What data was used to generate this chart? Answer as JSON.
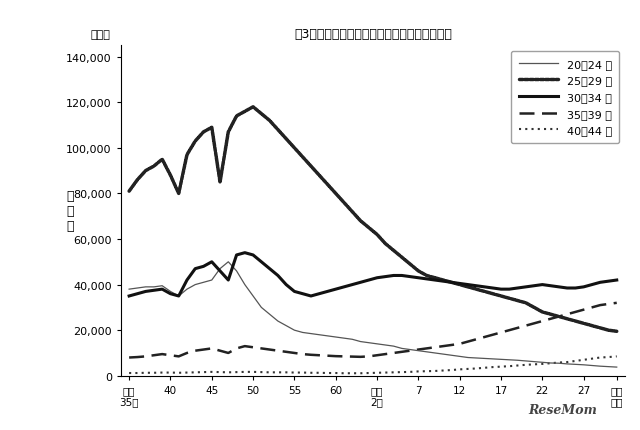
{
  "title": "図3　母の年齢別出生数の年次推移（東京都）",
  "ylabel_chars": [
    "出",
    "生",
    "数"
  ],
  "unit_label": "（人）",
  "background_color": "#ffffff",
  "ylim": [
    0,
    145000
  ],
  "yticks": [
    0,
    20000,
    40000,
    60000,
    80000,
    100000,
    120000,
    140000
  ],
  "x_tick_labels": [
    "昭和\n35年",
    "40",
    "45",
    "50",
    "55",
    "60",
    "平成\n2年",
    "7",
    "12",
    "17",
    "22",
    "27",
    "令和\n元年"
  ],
  "x_tick_positions": [
    1960,
    1965,
    1970,
    1975,
    1980,
    1985,
    1990,
    1995,
    2000,
    2005,
    2010,
    2015,
    2019
  ],
  "legend_labels": [
    "20～24 歳",
    "25～29 歳",
    "30～34 歳",
    "35～39 歳",
    "40～44 歳"
  ],
  "series": {
    "age_20_24": {
      "color": "#555555",
      "linewidth": 0.9,
      "linestyle": "-",
      "data": {
        "years": [
          1960,
          1961,
          1962,
          1963,
          1964,
          1965,
          1966,
          1967,
          1968,
          1969,
          1970,
          1971,
          1972,
          1973,
          1974,
          1975,
          1976,
          1977,
          1978,
          1979,
          1980,
          1981,
          1982,
          1983,
          1984,
          1985,
          1986,
          1987,
          1988,
          1989,
          1990,
          1991,
          1992,
          1993,
          1994,
          1995,
          1996,
          1997,
          1998,
          1999,
          2000,
          2001,
          2002,
          2003,
          2004,
          2005,
          2006,
          2007,
          2008,
          2009,
          2010,
          2011,
          2012,
          2013,
          2014,
          2015,
          2016,
          2017,
          2018,
          2019
        ],
        "values": [
          38000,
          38500,
          39000,
          39000,
          39500,
          37000,
          35000,
          38000,
          40000,
          41000,
          42000,
          47000,
          50000,
          46000,
          40000,
          35000,
          30000,
          27000,
          24000,
          22000,
          20000,
          19000,
          18500,
          18000,
          17500,
          17000,
          16500,
          16000,
          15000,
          14500,
          14000,
          13500,
          13000,
          12000,
          11500,
          11000,
          10500,
          10000,
          9500,
          9000,
          8500,
          8000,
          7800,
          7600,
          7400,
          7200,
          7000,
          6800,
          6500,
          6200,
          5900,
          5600,
          5500,
          5200,
          5000,
          4800,
          4500,
          4200,
          4000,
          3800
        ]
      }
    },
    "age_25_29": {
      "color": "#222222",
      "linewidth": 2.5,
      "linestyle": "dense_dot",
      "data": {
        "years": [
          1960,
          1961,
          1962,
          1963,
          1964,
          1965,
          1966,
          1967,
          1968,
          1969,
          1970,
          1971,
          1972,
          1973,
          1974,
          1975,
          1976,
          1977,
          1978,
          1979,
          1980,
          1981,
          1982,
          1983,
          1984,
          1985,
          1986,
          1987,
          1988,
          1989,
          1990,
          1991,
          1992,
          1993,
          1994,
          1995,
          1996,
          1997,
          1998,
          1999,
          2000,
          2001,
          2002,
          2003,
          2004,
          2005,
          2006,
          2007,
          2008,
          2009,
          2010,
          2011,
          2012,
          2013,
          2014,
          2015,
          2016,
          2017,
          2018,
          2019
        ],
        "values": [
          81000,
          86000,
          90000,
          92000,
          95000,
          88000,
          80000,
          97000,
          103000,
          107000,
          109000,
          85000,
          107000,
          114000,
          116000,
          118000,
          115000,
          112000,
          108000,
          104000,
          100000,
          96000,
          92000,
          88000,
          84000,
          80000,
          76000,
          72000,
          68000,
          65000,
          62000,
          58000,
          55000,
          52000,
          49000,
          46000,
          44000,
          43000,
          42000,
          41000,
          40000,
          39000,
          38000,
          37000,
          36000,
          35000,
          34000,
          33000,
          32000,
          30000,
          28000,
          27000,
          26000,
          25000,
          24000,
          23000,
          22000,
          21000,
          20000,
          19500
        ]
      }
    },
    "age_30_34": {
      "color": "#111111",
      "linewidth": 2.2,
      "linestyle": "-",
      "data": {
        "years": [
          1960,
          1961,
          1962,
          1963,
          1964,
          1965,
          1966,
          1967,
          1968,
          1969,
          1970,
          1971,
          1972,
          1973,
          1974,
          1975,
          1976,
          1977,
          1978,
          1979,
          1980,
          1981,
          1982,
          1983,
          1984,
          1985,
          1986,
          1987,
          1988,
          1989,
          1990,
          1991,
          1992,
          1993,
          1994,
          1995,
          1996,
          1997,
          1998,
          1999,
          2000,
          2001,
          2002,
          2003,
          2004,
          2005,
          2006,
          2007,
          2008,
          2009,
          2010,
          2011,
          2012,
          2013,
          2014,
          2015,
          2016,
          2017,
          2018,
          2019
        ],
        "values": [
          35000,
          36000,
          37000,
          37500,
          38000,
          36000,
          35000,
          42000,
          47000,
          48000,
          50000,
          46000,
          42000,
          53000,
          54000,
          53000,
          50000,
          47000,
          44000,
          40000,
          37000,
          36000,
          35000,
          36000,
          37000,
          38000,
          39000,
          40000,
          41000,
          42000,
          43000,
          43500,
          44000,
          44000,
          43500,
          43000,
          42500,
          42000,
          41500,
          41000,
          40500,
          40000,
          39500,
          39000,
          38500,
          38000,
          38000,
          38500,
          39000,
          39500,
          40000,
          39500,
          39000,
          38500,
          38500,
          39000,
          40000,
          41000,
          41500,
          42000
        ]
      }
    },
    "age_35_39": {
      "color": "#222222",
      "linewidth": 1.8,
      "linestyle": "--",
      "data": {
        "years": [
          1960,
          1961,
          1962,
          1963,
          1964,
          1965,
          1966,
          1967,
          1968,
          1969,
          1970,
          1971,
          1972,
          1973,
          1974,
          1975,
          1976,
          1977,
          1978,
          1979,
          1980,
          1981,
          1982,
          1983,
          1984,
          1985,
          1986,
          1987,
          1988,
          1989,
          1990,
          1991,
          1992,
          1993,
          1994,
          1995,
          1996,
          1997,
          1998,
          1999,
          2000,
          2001,
          2002,
          2003,
          2004,
          2005,
          2006,
          2007,
          2008,
          2009,
          2010,
          2011,
          2012,
          2013,
          2014,
          2015,
          2016,
          2017,
          2018,
          2019
        ],
        "values": [
          8000,
          8200,
          8500,
          9000,
          9500,
          9000,
          8500,
          10000,
          11000,
          11500,
          12000,
          11000,
          10000,
          12000,
          13000,
          12500,
          12000,
          11500,
          11000,
          10500,
          10000,
          9500,
          9200,
          9000,
          8800,
          8600,
          8500,
          8400,
          8300,
          8500,
          9000,
          9500,
          10000,
          10500,
          11000,
          11500,
          12000,
          12500,
          13000,
          13500,
          14000,
          15000,
          16000,
          17000,
          18000,
          19000,
          20000,
          21000,
          22000,
          23000,
          24000,
          25000,
          26000,
          27000,
          28000,
          29000,
          30000,
          31000,
          31500,
          32000
        ]
      }
    },
    "age_40_44": {
      "color": "#333333",
      "linewidth": 1.5,
      "linestyle": ":",
      "data": {
        "years": [
          1960,
          1961,
          1962,
          1963,
          1964,
          1965,
          1966,
          1967,
          1968,
          1969,
          1970,
          1971,
          1972,
          1973,
          1974,
          1975,
          1976,
          1977,
          1978,
          1979,
          1980,
          1981,
          1982,
          1983,
          1984,
          1985,
          1986,
          1987,
          1988,
          1989,
          1990,
          1991,
          1992,
          1993,
          1994,
          1995,
          1996,
          1997,
          1998,
          1999,
          2000,
          2001,
          2002,
          2003,
          2004,
          2005,
          2006,
          2007,
          2008,
          2009,
          2010,
          2011,
          2012,
          2013,
          2014,
          2015,
          2016,
          2017,
          2018,
          2019
        ],
        "values": [
          1200,
          1200,
          1300,
          1300,
          1400,
          1400,
          1300,
          1400,
          1500,
          1600,
          1700,
          1600,
          1500,
          1600,
          1700,
          1700,
          1600,
          1500,
          1500,
          1500,
          1400,
          1400,
          1300,
          1300,
          1200,
          1200,
          1100,
          1100,
          1100,
          1200,
          1300,
          1400,
          1500,
          1600,
          1700,
          1900,
          2000,
          2100,
          2300,
          2500,
          2800,
          3000,
          3200,
          3500,
          3800,
          4000,
          4200,
          4500,
          4800,
          5000,
          5200,
          5500,
          5800,
          6000,
          6500,
          7000,
          7500,
          8000,
          8200,
          8500
        ]
      }
    }
  }
}
